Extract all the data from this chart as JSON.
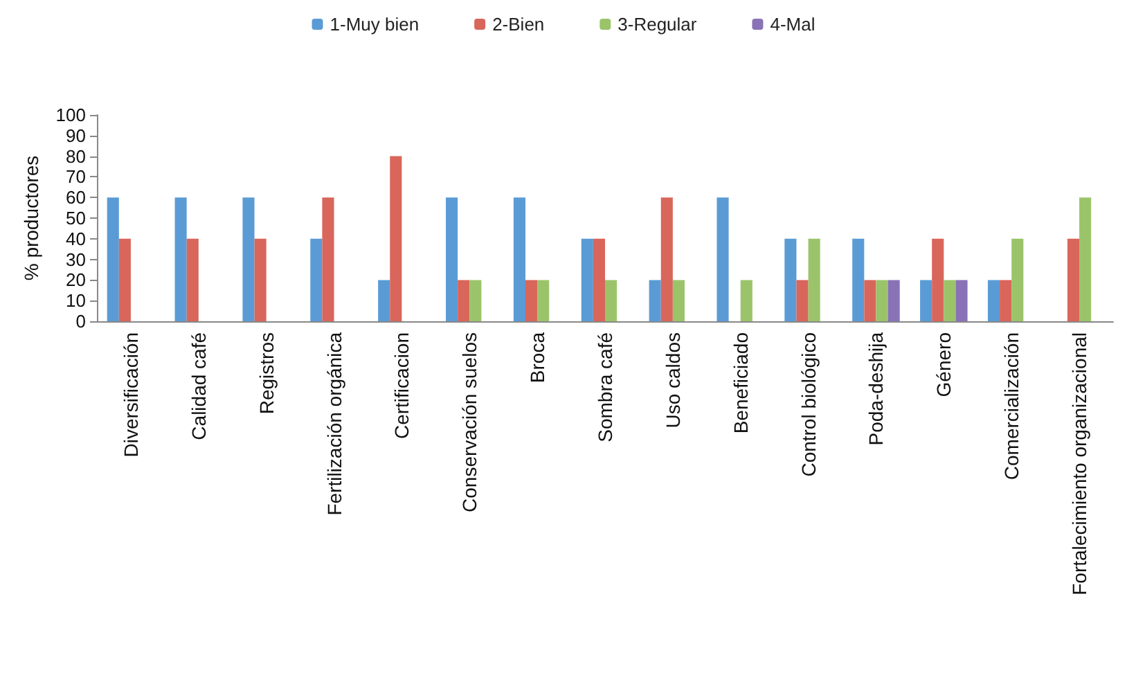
{
  "chart_data": {
    "type": "bar",
    "ylabel": "% productores",
    "categories": [
      "Diversificación",
      "Calidad café",
      "Registros",
      "Fertilización orgánica",
      "Certificacion",
      "Conservación suelos",
      "Broca",
      "Sombra café",
      "Uso caldos",
      "Beneficiado",
      "Control biológico",
      "Poda-deshija",
      "Género",
      "Comercialización",
      "Fortalecimiento organizacional"
    ],
    "series": [
      {
        "name": "1-Muy bien",
        "color": "#5b9bd5",
        "values": [
          60,
          60,
          60,
          40,
          20,
          60,
          60,
          40,
          20,
          60,
          40,
          40,
          20,
          20,
          0
        ]
      },
      {
        "name": "2-Bien",
        "color": "#d9665b",
        "values": [
          40,
          40,
          40,
          60,
          80,
          20,
          20,
          40,
          60,
          0,
          20,
          20,
          40,
          20,
          40
        ]
      },
      {
        "name": "3-Regular",
        "color": "#9bc46a",
        "values": [
          0,
          0,
          0,
          0,
          0,
          20,
          20,
          20,
          20,
          20,
          40,
          20,
          20,
          40,
          60
        ]
      },
      {
        "name": "4-Mal",
        "color": "#8a72b6",
        "values": [
          0,
          0,
          0,
          0,
          0,
          0,
          0,
          0,
          0,
          0,
          0,
          20,
          20,
          0,
          0
        ]
      }
    ],
    "ylim": [
      0,
      100
    ],
    "yticks": [
      0,
      10,
      20,
      30,
      40,
      50,
      60,
      70,
      80,
      90,
      100
    ],
    "grid": false,
    "legend": "top"
  }
}
